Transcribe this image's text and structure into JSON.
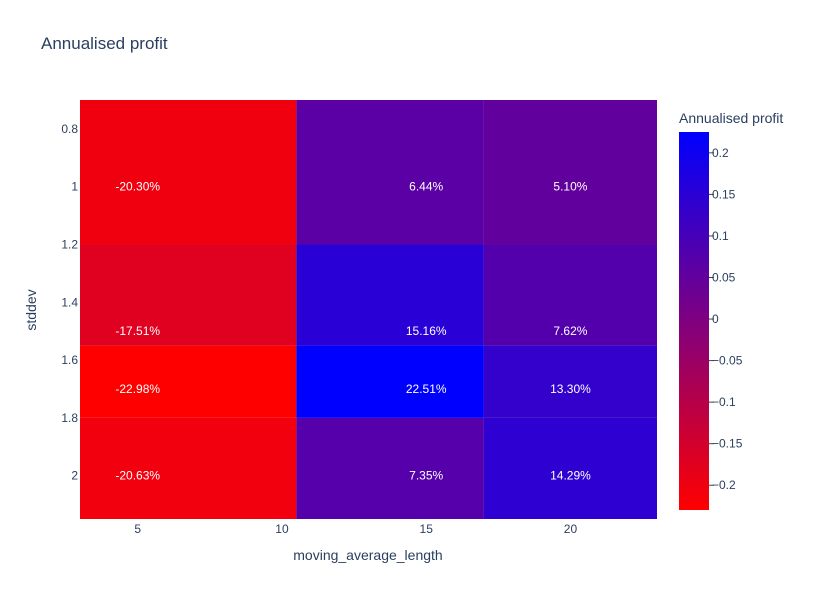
{
  "chart_data": {
    "type": "heatmap",
    "title": "Annualised profit",
    "xlabel": "moving_average_length",
    "ylabel": "stddev",
    "x_ticks": [
      "5",
      "10",
      "15",
      "20"
    ],
    "y_ticks": [
      "0.8",
      "1",
      "1.2",
      "1.4",
      "1.6",
      "1.8",
      "2"
    ],
    "x_range": [
      3,
      23
    ],
    "y_range": [
      0.7,
      2.15
    ],
    "x_edges": [
      3.0,
      10.5,
      17.0,
      23.0
    ],
    "y_edges": [
      0.7,
      1.2,
      1.55,
      1.8,
      2.15
    ],
    "cells": [
      {
        "col": 0,
        "row": 0,
        "value": -0.203,
        "label": "-20.30%",
        "label_x": 5,
        "label_y": 1.0
      },
      {
        "col": 1,
        "row": 0,
        "value": 0.0644,
        "label": "6.44%",
        "label_x": 15,
        "label_y": 1.0
      },
      {
        "col": 2,
        "row": 0,
        "value": 0.051,
        "label": "5.10%",
        "label_x": 20,
        "label_y": 1.0
      },
      {
        "col": 0,
        "row": 1,
        "value": -0.1751,
        "label": "-17.51%",
        "label_x": 5,
        "label_y": 1.5
      },
      {
        "col": 1,
        "row": 1,
        "value": 0.1516,
        "label": "15.16%",
        "label_x": 15,
        "label_y": 1.5
      },
      {
        "col": 2,
        "row": 1,
        "value": 0.0762,
        "label": "7.62%",
        "label_x": 20,
        "label_y": 1.5
      },
      {
        "col": 0,
        "row": 2,
        "value": -0.2298,
        "label": "-22.98%",
        "label_x": 5,
        "label_y": 1.7
      },
      {
        "col": 1,
        "row": 2,
        "value": 0.2251,
        "label": "22.51%",
        "label_x": 15,
        "label_y": 1.7
      },
      {
        "col": 2,
        "row": 2,
        "value": 0.133,
        "label": "13.30%",
        "label_x": 20,
        "label_y": 1.7
      },
      {
        "col": 0,
        "row": 3,
        "value": -0.2063,
        "label": "-20.63%",
        "label_x": 5,
        "label_y": 2.0
      },
      {
        "col": 1,
        "row": 3,
        "value": 0.0735,
        "label": "7.35%",
        "label_x": 15,
        "label_y": 2.0
      },
      {
        "col": 2,
        "row": 3,
        "value": 0.1429,
        "label": "14.29%",
        "label_x": 20,
        "label_y": 2.0
      }
    ],
    "colorscale": {
      "min": -0.2298,
      "max": 0.2251,
      "low_color": "#ff0000",
      "high_color": "#0000ff",
      "title": "Annualised profit",
      "ticks": [
        0.2,
        0.15,
        0.1,
        0.05,
        0,
        -0.05,
        -0.1,
        -0.15,
        -0.2
      ],
      "tick_labels": [
        "0.2",
        "0.15",
        "0.1",
        "0.05",
        "0",
        "−0.05",
        "−0.1",
        "−0.15",
        "−0.2"
      ]
    },
    "grid": false,
    "legend": "right colorbar"
  }
}
